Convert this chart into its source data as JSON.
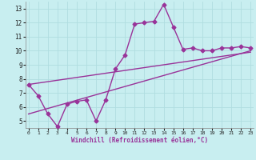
{
  "xlabel": "Windchill (Refroidissement éolien,°C)",
  "background_color": "#c8eef0",
  "grid_color": "#b0dde0",
  "line_color": "#993399",
  "x_ticks": [
    0,
    1,
    2,
    3,
    4,
    5,
    6,
    7,
    8,
    9,
    10,
    11,
    12,
    13,
    14,
    15,
    16,
    17,
    18,
    19,
    20,
    21,
    22,
    23
  ],
  "y_ticks": [
    5,
    6,
    7,
    8,
    9,
    10,
    11,
    12,
    13
  ],
  "xlim": [
    -0.3,
    23.3
  ],
  "ylim": [
    4.5,
    13.5
  ],
  "curve1_x": [
    0,
    1,
    2,
    3,
    4,
    5,
    6,
    7,
    8,
    9,
    10,
    11,
    12,
    13,
    14,
    15,
    16,
    17,
    18,
    19,
    20,
    21,
    22,
    23
  ],
  "curve1_y": [
    7.6,
    6.8,
    5.5,
    4.6,
    6.2,
    6.4,
    6.5,
    5.0,
    6.5,
    8.7,
    9.7,
    11.9,
    12.0,
    12.1,
    13.3,
    11.7,
    10.1,
    10.2,
    10.0,
    10.0,
    10.2,
    10.2,
    10.3,
    10.2
  ],
  "trend1_x": [
    0,
    23
  ],
  "trend1_y": [
    7.6,
    9.9
  ],
  "trend2_x": [
    0,
    23
  ],
  "trend2_y": [
    5.5,
    10.0
  ],
  "marker": "D",
  "marker_size": 2.5,
  "line_width": 1.0
}
